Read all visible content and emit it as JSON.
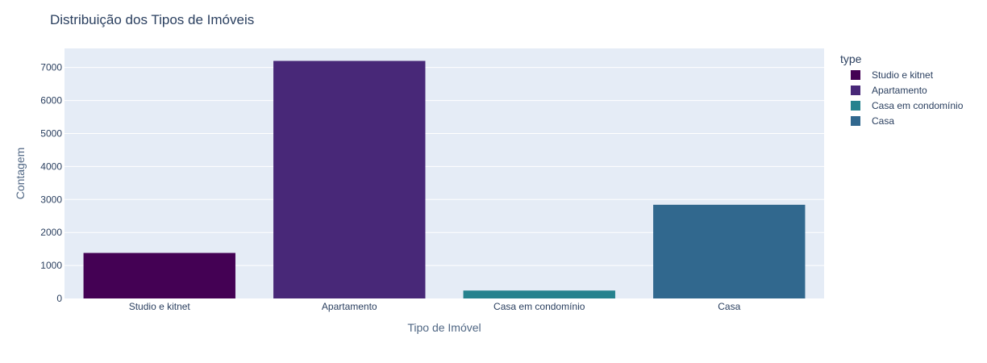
{
  "chart_data": {
    "type": "bar",
    "title": "Distribuição dos Tipos de Imóveis",
    "xlabel": "Tipo de Imóvel",
    "ylabel": "Contagem",
    "categories": [
      "Studio e kitnet",
      "Apartamento",
      "Casa em condomínio",
      "Casa"
    ],
    "series": [
      {
        "name": "Studio e kitnet",
        "category": "Studio e kitnet",
        "value": 1380,
        "color": "#440154"
      },
      {
        "name": "Apartamento",
        "category": "Apartamento",
        "value": 7200,
        "color": "#482878"
      },
      {
        "name": "Casa em condomínio",
        "category": "Casa em condomínio",
        "value": 240,
        "color": "#26828e"
      },
      {
        "name": "Casa",
        "category": "Casa",
        "value": 2840,
        "color": "#31688e"
      }
    ],
    "ylim": [
      0,
      7579
    ],
    "yticks": [
      0,
      1000,
      2000,
      3000,
      4000,
      5000,
      6000,
      7000
    ],
    "grid": true,
    "legend": {
      "title": "type",
      "placement": "right"
    },
    "colors": {
      "plot_bg": "#e5ecf6",
      "grid": "#ffffff"
    }
  }
}
